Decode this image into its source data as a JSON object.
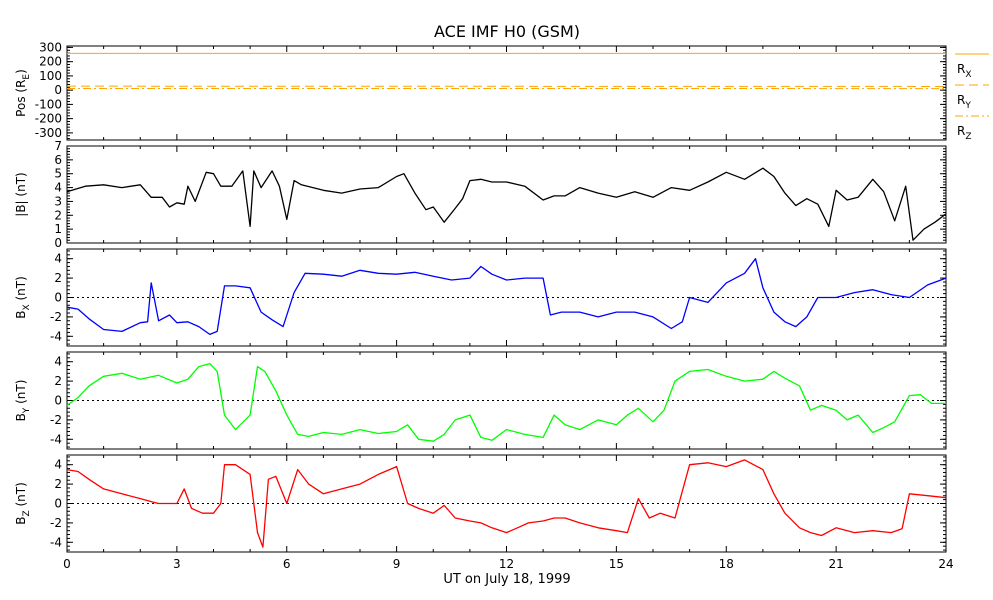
{
  "title": "ACE IMF H0 (GSM)",
  "xlabel": "UT on July 18, 1999",
  "chart_data": [
    {
      "type": "line",
      "panel": "position",
      "ylabel": "Pos (R",
      "ylabel_sub": "E",
      "ylabel_end": ")",
      "ylim": [
        -350,
        310
      ],
      "yticks": [
        -300,
        -200,
        -100,
        0,
        100,
        200,
        300
      ],
      "x": [
        0,
        24
      ],
      "series": [
        {
          "name": "R",
          "name_sub": "X",
          "color": "#ffa500",
          "style": "solid",
          "values": [
            258,
            258
          ]
        },
        {
          "name": "R",
          "name_sub": "Y",
          "color": "#ffa500",
          "style": "dashed",
          "values": [
            28,
            26
          ]
        },
        {
          "name": "R",
          "name_sub": "Z",
          "color": "#ffa500",
          "style": "dashdot",
          "values": [
            12,
            11
          ]
        }
      ]
    },
    {
      "type": "line",
      "panel": "btotal",
      "ylabel": "|B| (nT)",
      "ylim": [
        0,
        7
      ],
      "yticks": [
        0,
        1,
        2,
        3,
        4,
        5,
        6,
        7
      ],
      "color": "#000000",
      "x": [
        0,
        0.5,
        1,
        1.5,
        2,
        2.3,
        2.6,
        2.8,
        3,
        3.2,
        3.3,
        3.5,
        3.8,
        4,
        4.2,
        4.5,
        4.8,
        5,
        5.1,
        5.3,
        5.6,
        5.8,
        6,
        6.2,
        6.4,
        7,
        7.5,
        8,
        8.5,
        9,
        9.2,
        9.5,
        9.8,
        10,
        10.3,
        10.6,
        10.8,
        11,
        11.3,
        11.6,
        12,
        12.5,
        13,
        13.3,
        13.6,
        14,
        14.5,
        15,
        15.5,
        16,
        16.5,
        17,
        17.5,
        18,
        18.5,
        19,
        19.3,
        19.6,
        19.9,
        20.2,
        20.5,
        20.8,
        21,
        21.3,
        21.6,
        22,
        22.3,
        22.6,
        22.9,
        23.1,
        23.4,
        23.7,
        24
      ],
      "values": [
        3.7,
        4.1,
        4.2,
        4.0,
        4.2,
        3.3,
        3.3,
        2.6,
        2.9,
        2.8,
        4.1,
        3.0,
        5.1,
        5.0,
        4.1,
        4.1,
        5.2,
        1.2,
        5.2,
        4.0,
        5.2,
        4.1,
        1.7,
        4.5,
        4.2,
        3.8,
        3.6,
        3.9,
        4.0,
        4.8,
        5.0,
        3.6,
        2.4,
        2.6,
        1.5,
        2.5,
        3.2,
        4.5,
        4.6,
        4.4,
        4.4,
        4.1,
        3.1,
        3.4,
        3.4,
        4.0,
        3.6,
        3.3,
        3.7,
        3.3,
        4.0,
        3.8,
        4.4,
        5.1,
        4.6,
        5.4,
        4.8,
        3.6,
        2.7,
        3.2,
        2.8,
        1.2,
        3.8,
        3.1,
        3.3,
        4.6,
        3.7,
        1.6,
        4.1,
        0.2,
        1.0,
        1.5,
        2.1
      ]
    },
    {
      "type": "line",
      "panel": "bx",
      "ylabel": "B",
      "ylabel_sub": "X",
      "ylabel_end": " (nT)",
      "ylim": [
        -5,
        5
      ],
      "yticks": [
        -4,
        -2,
        0,
        2,
        4
      ],
      "color": "#0000ff",
      "x": [
        0,
        0.3,
        0.6,
        1,
        1.5,
        2,
        2.2,
        2.3,
        2.5,
        2.8,
        3,
        3.3,
        3.6,
        3.9,
        4.1,
        4.3,
        4.6,
        5,
        5.3,
        5.6,
        5.9,
        6.2,
        6.5,
        7,
        7.5,
        8,
        8.5,
        9,
        9.5,
        10,
        10.5,
        11,
        11.3,
        11.6,
        12,
        12.5,
        13,
        13.2,
        13.5,
        14,
        14.5,
        15,
        15.5,
        16,
        16.5,
        16.8,
        17,
        17.5,
        18,
        18.5,
        18.8,
        19,
        19.3,
        19.6,
        19.9,
        20.2,
        20.5,
        21,
        21.5,
        22,
        22.5,
        23,
        23.5,
        24
      ],
      "values": [
        -1.0,
        -1.2,
        -2.2,
        -3.3,
        -3.5,
        -2.6,
        -2.5,
        1.5,
        -2.4,
        -1.8,
        -2.6,
        -2.5,
        -3.0,
        -3.8,
        -3.5,
        1.2,
        1.2,
        1.0,
        -1.5,
        -2.3,
        -3.0,
        0.5,
        2.5,
        2.4,
        2.2,
        2.8,
        2.5,
        2.4,
        2.6,
        2.2,
        1.8,
        2.0,
        3.2,
        2.4,
        1.8,
        2.0,
        2.0,
        -1.8,
        -1.5,
        -1.5,
        -2.0,
        -1.5,
        -1.5,
        -2.0,
        -3.2,
        -2.5,
        0.0,
        -0.5,
        1.5,
        2.5,
        4.0,
        1.0,
        -1.5,
        -2.5,
        -3.0,
        -2.0,
        0.0,
        0.0,
        0.5,
        0.8,
        0.3,
        0.0,
        1.3,
        2.0
      ]
    },
    {
      "type": "line",
      "panel": "by",
      "ylabel": "B",
      "ylabel_sub": "Y",
      "ylabel_end": " (nT)",
      "ylim": [
        -5,
        5
      ],
      "yticks": [
        -4,
        -2,
        0,
        2,
        4
      ],
      "color": "#00ff00",
      "x": [
        0,
        0.3,
        0.6,
        1,
        1.5,
        2,
        2.5,
        3,
        3.3,
        3.6,
        3.9,
        4.1,
        4.3,
        4.6,
        5,
        5.2,
        5.4,
        5.7,
        6,
        6.3,
        6.6,
        7,
        7.5,
        8,
        8.5,
        9,
        9.3,
        9.6,
        10,
        10.3,
        10.6,
        11,
        11.3,
        11.6,
        12,
        12.5,
        13,
        13.3,
        13.6,
        14,
        14.5,
        15,
        15.3,
        15.6,
        16,
        16.3,
        16.6,
        17,
        17.5,
        18,
        18.5,
        19,
        19.3,
        19.6,
        20,
        20.3,
        20.6,
        21,
        21.3,
        21.6,
        22,
        22.3,
        22.6,
        23,
        23.3,
        23.6,
        24
      ],
      "values": [
        -0.5,
        0.3,
        1.5,
        2.5,
        2.8,
        2.2,
        2.6,
        1.8,
        2.2,
        3.5,
        3.8,
        3.0,
        -1.5,
        -3.0,
        -1.5,
        3.5,
        3.0,
        1.0,
        -1.5,
        -3.5,
        -3.7,
        -3.3,
        -3.5,
        -3.0,
        -3.4,
        -3.2,
        -2.5,
        -4.0,
        -4.2,
        -3.5,
        -2.0,
        -1.5,
        -3.8,
        -4.1,
        -3.0,
        -3.5,
        -3.8,
        -1.5,
        -2.5,
        -3.0,
        -2.0,
        -2.5,
        -1.5,
        -0.8,
        -2.2,
        -1.0,
        2.0,
        3.0,
        3.2,
        2.5,
        2.0,
        2.2,
        3.0,
        2.3,
        1.5,
        -1.0,
        -0.5,
        -1.0,
        -2.0,
        -1.5,
        -3.3,
        -2.8,
        -2.2,
        0.5,
        0.6,
        -0.3,
        -0.3
      ]
    },
    {
      "type": "line",
      "panel": "bz",
      "ylabel": "B",
      "ylabel_sub": "Z",
      "ylabel_end": " (nT)",
      "ylim": [
        -5,
        5
      ],
      "yticks": [
        -4,
        -2,
        0,
        2,
        4
      ],
      "color": "#ff0000",
      "x": [
        0,
        0.3,
        0.6,
        1,
        1.5,
        2,
        2.3,
        2.5,
        3,
        3.2,
        3.4,
        3.7,
        4,
        4.2,
        4.3,
        4.6,
        5,
        5.2,
        5.35,
        5.5,
        5.7,
        6,
        6.3,
        6.6,
        7,
        7.5,
        8,
        8.5,
        9,
        9.3,
        9.6,
        10,
        10.3,
        10.6,
        11,
        11.3,
        11.6,
        12,
        12.3,
        12.6,
        13,
        13.3,
        13.6,
        14,
        14.5,
        15,
        15.3,
        15.6,
        15.9,
        16.2,
        16.6,
        17,
        17.5,
        18,
        18.5,
        19,
        19.3,
        19.6,
        20,
        20.3,
        20.6,
        21,
        21.5,
        22,
        22.5,
        22.8,
        23,
        23.5,
        24
      ],
      "values": [
        3.5,
        3.3,
        2.5,
        1.5,
        1.0,
        0.5,
        0.2,
        0.0,
        0.0,
        1.5,
        -0.5,
        -1.0,
        -1.0,
        0.0,
        4.0,
        4.0,
        3.0,
        -3.0,
        -4.5,
        2.5,
        2.8,
        0.0,
        3.5,
        2.0,
        1.0,
        1.5,
        2.0,
        3.0,
        3.8,
        0.0,
        -0.5,
        -1.0,
        -0.2,
        -1.5,
        -1.8,
        -2.0,
        -2.5,
        -3.0,
        -2.5,
        -2.0,
        -1.8,
        -1.5,
        -1.5,
        -2.0,
        -2.5,
        -2.8,
        -3.0,
        0.5,
        -1.5,
        -1.0,
        -1.5,
        4.0,
        4.2,
        3.8,
        4.5,
        3.5,
        1.0,
        -1.0,
        -2.5,
        -3.0,
        -3.3,
        -2.5,
        -3.0,
        -2.8,
        -3.0,
        -2.6,
        1.0,
        0.8,
        0.6
      ]
    }
  ],
  "xaxis": {
    "ticks": [
      "0",
      "3",
      "6",
      "9",
      "12",
      "15",
      "18",
      "21",
      "24"
    ],
    "range": [
      0,
      24
    ]
  }
}
